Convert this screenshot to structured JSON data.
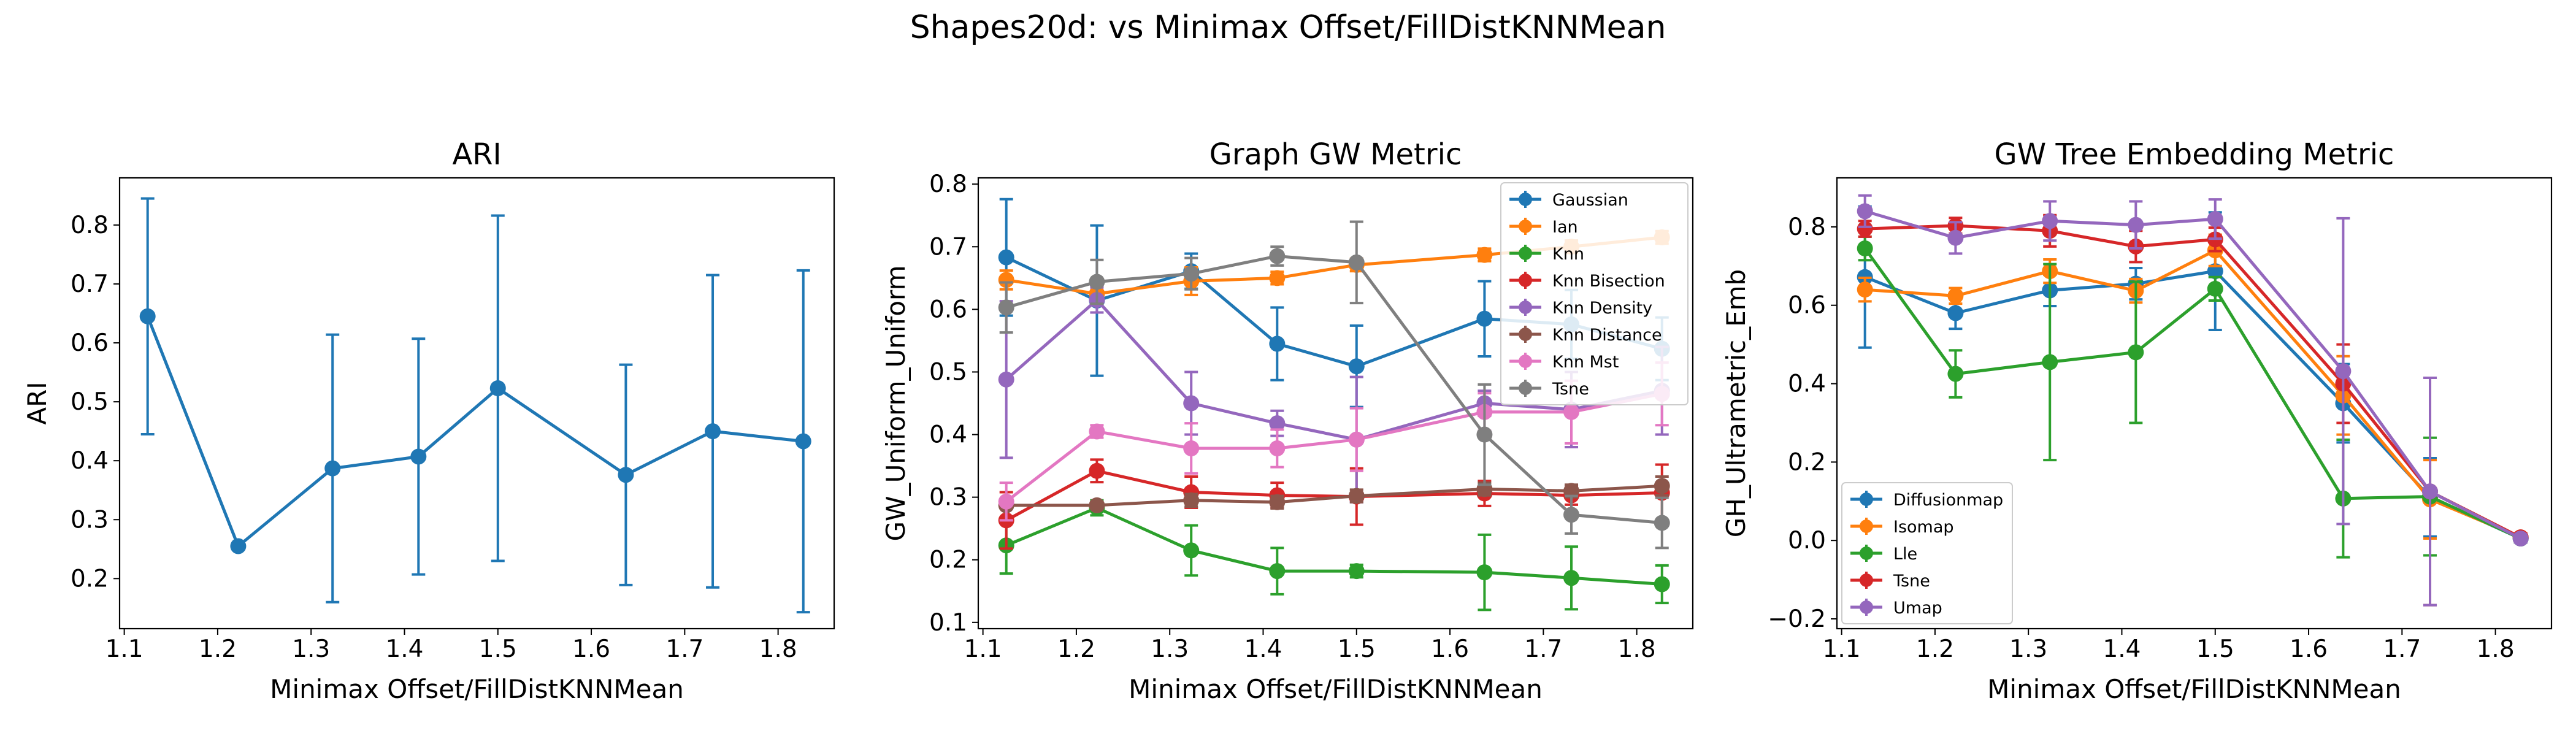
{
  "figure": {
    "title": "Shapes20d: vs Minimax Offset/FillDistKNNMean"
  },
  "chart_data": [
    {
      "type": "line",
      "title": "ARI",
      "xlabel": "Minimax Offset/FillDistKNNMean",
      "ylabel": "ARI",
      "xlim": [
        1.095,
        1.86
      ],
      "ylim": [
        0.115,
        0.88
      ],
      "xticks": [
        1.1,
        1.2,
        1.3,
        1.4,
        1.5,
        1.6,
        1.7,
        1.8
      ],
      "xtick_labels": [
        "1.1",
        "1.2",
        "1.3",
        "1.4",
        "1.5",
        "1.6",
        "1.7",
        "1.8"
      ],
      "yticks": [
        0.2,
        0.3,
        0.4,
        0.5,
        0.6,
        0.7,
        0.8
      ],
      "ytick_labels": [
        "0.2",
        "0.3",
        "0.4",
        "0.5",
        "0.6",
        "0.7",
        "0.8"
      ],
      "x": [
        1.125,
        1.222,
        1.323,
        1.415,
        1.5,
        1.637,
        1.73,
        1.827
      ],
      "series": [
        {
          "color": "#1f77b4",
          "values": [
            0.645,
            0.255,
            0.387,
            0.407,
            0.523,
            0.376,
            0.45,
            0.433
          ],
          "err": [
            0.2,
            0.0,
            0.227,
            0.2,
            0.293,
            0.187,
            0.265,
            0.29
          ]
        }
      ],
      "legend": null
    },
    {
      "type": "line",
      "title": "Graph GW Metric",
      "xlabel": "Minimax Offset/FillDistKNNMean",
      "ylabel": "GW_Uniform_Uniform",
      "xlim": [
        1.095,
        1.86
      ],
      "ylim": [
        0.09,
        0.81
      ],
      "xticks": [
        1.1,
        1.2,
        1.3,
        1.4,
        1.5,
        1.6,
        1.7,
        1.8
      ],
      "xtick_labels": [
        "1.1",
        "1.2",
        "1.3",
        "1.4",
        "1.5",
        "1.6",
        "1.7",
        "1.8"
      ],
      "yticks": [
        0.1,
        0.2,
        0.3,
        0.4,
        0.5,
        0.6,
        0.7,
        0.8
      ],
      "ytick_labels": [
        "0.1",
        "0.2",
        "0.3",
        "0.4",
        "0.5",
        "0.6",
        "0.7",
        "0.8"
      ],
      "x": [
        1.125,
        1.222,
        1.323,
        1.415,
        1.5,
        1.637,
        1.73,
        1.827
      ],
      "series": [
        {
          "name": "Gaussian",
          "color": "#1f77b4",
          "values": [
            0.683,
            0.614,
            0.661,
            0.545,
            0.509,
            0.585,
            0.576,
            0.537
          ],
          "err": [
            0.093,
            0.12,
            0.028,
            0.058,
            0.065,
            0.06,
            0.055,
            0.05
          ]
        },
        {
          "name": "Ian",
          "color": "#ff7f0e",
          "values": [
            0.647,
            0.625,
            0.645,
            0.65,
            0.671,
            0.687,
            0.7,
            0.715
          ],
          "err": [
            0.015,
            0.013,
            0.022,
            0.01,
            0.01,
            0.01,
            0.01,
            0.01
          ]
        },
        {
          "name": "Knn",
          "color": "#2ca02c",
          "values": [
            0.223,
            0.283,
            0.215,
            0.182,
            0.182,
            0.18,
            0.171,
            0.161
          ],
          "err": [
            0.045,
            0.012,
            0.04,
            0.037,
            0.01,
            0.06,
            0.05,
            0.03
          ]
        },
        {
          "name": "Knn Bisection",
          "color": "#d62728",
          "values": [
            0.263,
            0.342,
            0.308,
            0.303,
            0.301,
            0.306,
            0.303,
            0.307
          ],
          "err": [
            0.045,
            0.018,
            0.025,
            0.02,
            0.045,
            0.02,
            0.015,
            0.045
          ]
        },
        {
          "name": "Knn Density",
          "color": "#9467bd",
          "values": [
            0.488,
            0.615,
            0.45,
            0.418,
            0.392,
            0.45,
            0.44,
            0.47
          ],
          "err": [
            0.125,
            0.02,
            0.05,
            0.02,
            0.1,
            0.02,
            0.06,
            0.07
          ]
        },
        {
          "name": "Knn Distance",
          "color": "#8c564b",
          "values": [
            0.287,
            0.287,
            0.295,
            0.292,
            0.302,
            0.313,
            0.31,
            0.318
          ],
          "err": [
            0.005,
            0.005,
            0.01,
            0.01,
            0.01,
            0.01,
            0.01,
            0.015
          ]
        },
        {
          "name": "Knn Mst",
          "color": "#e377c2",
          "values": [
            0.293,
            0.405,
            0.378,
            0.378,
            0.392,
            0.436,
            0.436,
            0.465
          ],
          "err": [
            0.03,
            0.01,
            0.04,
            0.03,
            0.05,
            0.03,
            0.05,
            0.05
          ]
        },
        {
          "name": "Tsne",
          "color": "#7f7f7f",
          "values": [
            0.603,
            0.644,
            0.657,
            0.685,
            0.675,
            0.4,
            0.272,
            0.259
          ],
          "err": [
            0.04,
            0.035,
            0.025,
            0.015,
            0.065,
            0.08,
            0.03,
            0.04
          ]
        }
      ],
      "legend": "top-right"
    },
    {
      "type": "line",
      "title": "GW Tree Embedding Metric",
      "xlabel": "Minimax Offset/FillDistKNNMean",
      "ylabel": "GH_Ultrametric_Emb",
      "xlim": [
        1.095,
        1.86
      ],
      "ylim": [
        -0.225,
        0.925
      ],
      "xticks": [
        1.1,
        1.2,
        1.3,
        1.4,
        1.5,
        1.6,
        1.7,
        1.8
      ],
      "xtick_labels": [
        "1.1",
        "1.2",
        "1.3",
        "1.4",
        "1.5",
        "1.6",
        "1.7",
        "1.8"
      ],
      "yticks": [
        -0.2,
        0.0,
        0.2,
        0.4,
        0.6,
        0.8
      ],
      "ytick_labels": [
        "−0.2",
        "0.0",
        "0.2",
        "0.4",
        "0.6",
        "0.8"
      ],
      "x": [
        1.125,
        1.222,
        1.323,
        1.415,
        1.5,
        1.637,
        1.73,
        1.827
      ],
      "series": [
        {
          "name": "Diffusionmap",
          "color": "#1f77b4",
          "values": [
            0.672,
            0.58,
            0.638,
            0.655,
            0.687,
            0.35,
            0.11,
            0.005
          ],
          "err": [
            0.18,
            0.04,
            0.04,
            0.04,
            0.15,
            0.1,
            0.1,
            0.01
          ]
        },
        {
          "name": "Isomap",
          "color": "#ff7f0e",
          "values": [
            0.64,
            0.624,
            0.687,
            0.637,
            0.74,
            0.37,
            0.105,
            0.008
          ],
          "err": [
            0.03,
            0.02,
            0.03,
            0.03,
            0.04,
            0.1,
            0.1,
            0.01
          ]
        },
        {
          "name": "Lle",
          "color": "#2ca02c",
          "values": [
            0.745,
            0.425,
            0.455,
            0.48,
            0.642,
            0.107,
            0.112,
            0.005
          ],
          "err": [
            0.03,
            0.06,
            0.25,
            0.18,
            0.03,
            0.15,
            0.15,
            0.01
          ]
        },
        {
          "name": "Tsne",
          "color": "#d62728",
          "values": [
            0.795,
            0.803,
            0.79,
            0.75,
            0.768,
            0.4,
            0.125,
            0.008
          ],
          "err": [
            0.02,
            0.02,
            0.04,
            0.04,
            0.03,
            0.1,
            0.29,
            0.01
          ]
        },
        {
          "name": "Umap",
          "color": "#9467bd",
          "values": [
            0.84,
            0.772,
            0.815,
            0.805,
            0.82,
            0.432,
            0.125,
            0.005
          ],
          "err": [
            0.04,
            0.04,
            0.05,
            0.06,
            0.05,
            0.39,
            0.29,
            0.01
          ]
        }
      ],
      "legend": "lower-left"
    }
  ]
}
